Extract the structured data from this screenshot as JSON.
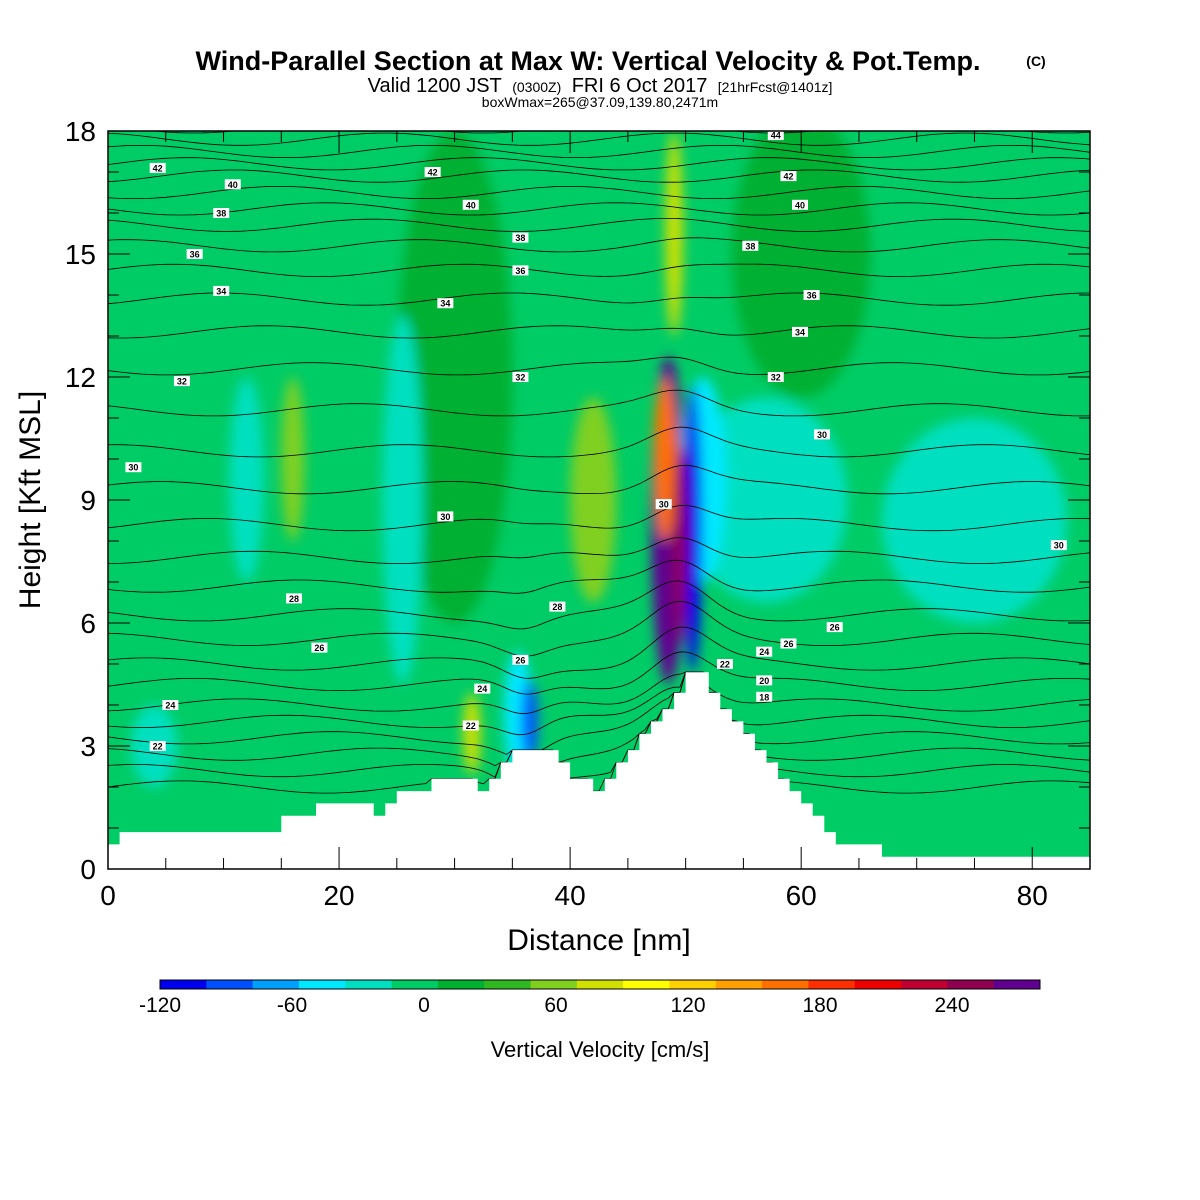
{
  "title": {
    "main": "Wind-Parallel Section at Max W: Vertical Velocity & Pot.Temp.",
    "copyright_mark": "(C)",
    "valid_prefix": "Valid 1200 JST",
    "valid_utc": "(0300Z)",
    "valid_date": "FRI 6 Oct 2017",
    "forecast": "[21hrFcst@1401z]",
    "boxwmax": "boxWmax=265@37.09,139.80,2471m"
  },
  "chart_data": {
    "type": "heatmap",
    "xlabel": "Distance [nm]",
    "ylabel": "Height [Kft MSL]",
    "xlim": [
      0,
      85
    ],
    "ylim": [
      0,
      18
    ],
    "x_ticks": [
      0,
      20,
      40,
      60,
      80
    ],
    "x_tick_labels": [
      "0",
      "20",
      "40",
      "60",
      "80"
    ],
    "y_ticks": [
      0,
      3,
      6,
      9,
      12,
      15,
      18
    ],
    "y_tick_labels": [
      "0",
      "3",
      "6",
      "9",
      "12",
      "15",
      "18"
    ],
    "background_color": "#00cc66",
    "colorbar": {
      "title": "Vertical Velocity [cm/s]",
      "levels": [
        -120,
        -100,
        -80,
        -60,
        -40,
        -20,
        0,
        20,
        40,
        60,
        80,
        100,
        120,
        140,
        160,
        180,
        200,
        220,
        240,
        260,
        280
      ],
      "colors": [
        "#0000ee",
        "#0050ff",
        "#00a0ff",
        "#00e8ff",
        "#00e0c0",
        "#00cc66",
        "#00b030",
        "#30b820",
        "#80d020",
        "#d0e000",
        "#ffff00",
        "#ffd000",
        "#ffa000",
        "#ff7000",
        "#ff3000",
        "#ee0000",
        "#c00030",
        "#900050",
        "#600090"
      ],
      "labels": [
        "-120",
        "-60",
        "0",
        "60",
        "120",
        "180",
        "240"
      ],
      "label_values": [
        -120,
        -60,
        0,
        60,
        120,
        180,
        240
      ]
    },
    "terrain_profile": [
      [
        0,
        0.6
      ],
      [
        1,
        0.6
      ],
      [
        1,
        0.9
      ],
      [
        15,
        0.9
      ],
      [
        15,
        1.3
      ],
      [
        18,
        1.3
      ],
      [
        18,
        1.6
      ],
      [
        23,
        1.6
      ],
      [
        23,
        1.3
      ],
      [
        24,
        1.3
      ],
      [
        24,
        1.6
      ],
      [
        25,
        1.6
      ],
      [
        25,
        1.9
      ],
      [
        28,
        1.9
      ],
      [
        28,
        2.2
      ],
      [
        32,
        2.2
      ],
      [
        32,
        1.9
      ],
      [
        33,
        1.9
      ],
      [
        33,
        2.2
      ],
      [
        34,
        2.2
      ],
      [
        34,
        2.6
      ],
      [
        35,
        2.6
      ],
      [
        35,
        2.9
      ],
      [
        39,
        2.9
      ],
      [
        39,
        2.6
      ],
      [
        40,
        2.6
      ],
      [
        40,
        2.2
      ],
      [
        42,
        2.2
      ],
      [
        42,
        1.9
      ],
      [
        43,
        1.9
      ],
      [
        43,
        2.2
      ],
      [
        44,
        2.2
      ],
      [
        44,
        2.6
      ],
      [
        45,
        2.6
      ],
      [
        45,
        2.9
      ],
      [
        46,
        2.9
      ],
      [
        46,
        3.3
      ],
      [
        47,
        3.3
      ],
      [
        47,
        3.6
      ],
      [
        48,
        3.6
      ],
      [
        48,
        3.9
      ],
      [
        49,
        3.9
      ],
      [
        49,
        4.3
      ],
      [
        50,
        4.3
      ],
      [
        50,
        4.8
      ],
      [
        52,
        4.8
      ],
      [
        52,
        4.3
      ],
      [
        53,
        4.3
      ],
      [
        53,
        3.9
      ],
      [
        54,
        3.9
      ],
      [
        54,
        3.6
      ],
      [
        55,
        3.6
      ],
      [
        55,
        3.3
      ],
      [
        56,
        3.3
      ],
      [
        56,
        2.9
      ],
      [
        57,
        2.9
      ],
      [
        57,
        2.6
      ],
      [
        58,
        2.6
      ],
      [
        58,
        2.2
      ],
      [
        59,
        2.2
      ],
      [
        59,
        1.9
      ],
      [
        60,
        1.9
      ],
      [
        60,
        1.6
      ],
      [
        61,
        1.6
      ],
      [
        61,
        1.3
      ],
      [
        62,
        1.3
      ],
      [
        62,
        0.9
      ],
      [
        63,
        0.9
      ],
      [
        63,
        0.6
      ],
      [
        67,
        0.6
      ],
      [
        67,
        0.3
      ],
      [
        85,
        0.3
      ]
    ],
    "velocity_features": [
      {
        "x": 48.5,
        "y": 8.5,
        "width": 3,
        "height": 8,
        "value": 265
      },
      {
        "x": 49.5,
        "y": 8.0,
        "width": 1.2,
        "height": 5,
        "value": 220
      },
      {
        "x": 48.2,
        "y": 10.0,
        "width": 2,
        "height": 4,
        "value": 140
      },
      {
        "x": 50.6,
        "y": 8.3,
        "width": 1.6,
        "height": 7,
        "value": -110
      },
      {
        "x": 51.5,
        "y": 9.5,
        "width": 4,
        "height": 5,
        "value": -50
      },
      {
        "x": 57,
        "y": 9.0,
        "width": 14,
        "height": 5,
        "value": -30
      },
      {
        "x": 75,
        "y": 8.5,
        "width": 16,
        "height": 5,
        "value": -30
      },
      {
        "x": 36.5,
        "y": 3.6,
        "width": 1.4,
        "height": 2,
        "value": -100
      },
      {
        "x": 35.5,
        "y": 3.8,
        "width": 2.5,
        "height": 3,
        "value": -50
      },
      {
        "x": 25.5,
        "y": 9.0,
        "width": 3.5,
        "height": 9,
        "value": -30
      },
      {
        "x": 12,
        "y": 9.5,
        "width": 3,
        "height": 5,
        "value": -30
      },
      {
        "x": 4,
        "y": 3.0,
        "width": 4,
        "height": 2,
        "value": -30
      },
      {
        "x": 42,
        "y": 9.0,
        "width": 4,
        "height": 5,
        "value": 40
      },
      {
        "x": 16,
        "y": 10.0,
        "width": 2,
        "height": 4,
        "value": 40
      },
      {
        "x": 31.5,
        "y": 3.3,
        "width": 1.5,
        "height": 2,
        "value": 60
      },
      {
        "x": 49,
        "y": 15.5,
        "width": 1.5,
        "height": 5,
        "value": 60
      },
      {
        "x": 30,
        "y": 12.0,
        "width": 10,
        "height": 12,
        "value": 10
      },
      {
        "x": 60,
        "y": 15.0,
        "width": 12,
        "height": 7,
        "value": 10
      }
    ],
    "isentropes": {
      "levels": [
        16,
        17,
        18,
        19,
        20,
        21,
        22,
        23,
        24,
        25,
        26,
        27,
        28,
        29,
        30,
        31,
        32,
        33,
        34,
        35,
        36,
        37,
        38,
        39,
        40,
        41,
        42,
        43,
        44
      ],
      "base_height": [
        2.0,
        2.4,
        2.8,
        3.2,
        3.6,
        4.0,
        4.5,
        5.0,
        5.6,
        6.2,
        6.9,
        7.6,
        8.4,
        9.3,
        10.2,
        11.2,
        12.2,
        13.1,
        13.9,
        14.6,
        15.2,
        15.7,
        16.1,
        16.5,
        16.9,
        17.2,
        17.5,
        17.8,
        18.1
      ],
      "labels": [
        {
          "text": "42",
          "x": 4.3,
          "y": 17.1
        },
        {
          "text": "40",
          "x": 10.8,
          "y": 16.7
        },
        {
          "text": "38",
          "x": 9.8,
          "y": 16.0
        },
        {
          "text": "36",
          "x": 7.5,
          "y": 15.0
        },
        {
          "text": "34",
          "x": 9.8,
          "y": 14.1
        },
        {
          "text": "32",
          "x": 6.4,
          "y": 11.9
        },
        {
          "text": "30",
          "x": 2.2,
          "y": 9.8
        },
        {
          "text": "28",
          "x": 16.1,
          "y": 6.6
        },
        {
          "text": "26",
          "x": 18.3,
          "y": 5.4
        },
        {
          "text": "24",
          "x": 5.4,
          "y": 4.0
        },
        {
          "text": "22",
          "x": 4.3,
          "y": 3.0
        },
        {
          "text": "42",
          "x": 28.1,
          "y": 17.0
        },
        {
          "text": "40",
          "x": 31.4,
          "y": 16.2
        },
        {
          "text": "38",
          "x": 35.7,
          "y": 15.4
        },
        {
          "text": "36",
          "x": 35.7,
          "y": 14.6
        },
        {
          "text": "34",
          "x": 29.2,
          "y": 13.8
        },
        {
          "text": "32",
          "x": 35.7,
          "y": 12.0
        },
        {
          "text": "30",
          "x": 29.2,
          "y": 8.6
        },
        {
          "text": "28",
          "x": 38.9,
          "y": 6.4
        },
        {
          "text": "26",
          "x": 35.7,
          "y": 5.1
        },
        {
          "text": "24",
          "x": 32.4,
          "y": 4.4
        },
        {
          "text": "22",
          "x": 31.4,
          "y": 3.5
        },
        {
          "text": "30",
          "x": 48.1,
          "y": 8.9
        },
        {
          "text": "44",
          "x": 57.8,
          "y": 17.9
        },
        {
          "text": "42",
          "x": 58.9,
          "y": 16.9
        },
        {
          "text": "40",
          "x": 59.9,
          "y": 16.2
        },
        {
          "text": "38",
          "x": 55.6,
          "y": 15.2
        },
        {
          "text": "36",
          "x": 60.9,
          "y": 14.0
        },
        {
          "text": "34",
          "x": 59.9,
          "y": 13.1
        },
        {
          "text": "32",
          "x": 57.8,
          "y": 12.0
        },
        {
          "text": "30",
          "x": 61.8,
          "y": 10.6
        },
        {
          "text": "26",
          "x": 58.9,
          "y": 5.5
        },
        {
          "text": "24",
          "x": 56.8,
          "y": 5.3
        },
        {
          "text": "22",
          "x": 53.4,
          "y": 5.0
        },
        {
          "text": "20",
          "x": 56.8,
          "y": 4.6
        },
        {
          "text": "18",
          "x": 56.8,
          "y": 4.2
        },
        {
          "text": "26",
          "x": 62.9,
          "y": 5.9
        },
        {
          "text": "30",
          "x": 82.3,
          "y": 7.9
        }
      ]
    }
  }
}
